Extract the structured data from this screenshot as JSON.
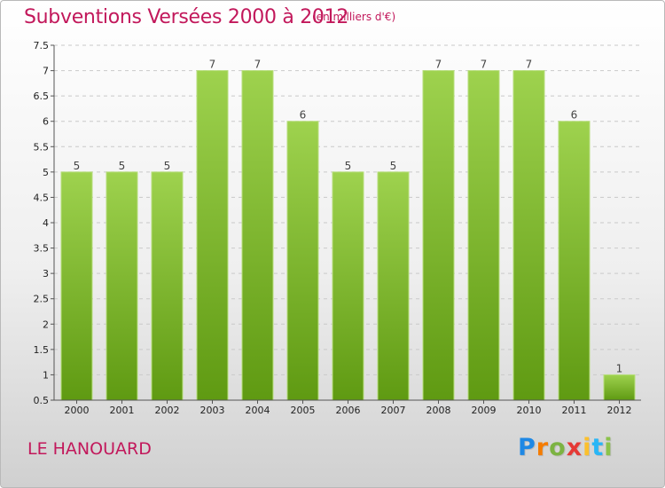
{
  "title": "Subventions Versées 2000 à 2012",
  "unit_note": "(en milliers d'€)",
  "commune": "LE HANOUARD",
  "logo": {
    "letters": [
      {
        "ch": "P",
        "color": "#1e88e5"
      },
      {
        "ch": "r",
        "color": "#f57c00"
      },
      {
        "ch": "o",
        "color": "#7cb342"
      },
      {
        "ch": "x",
        "color": "#e53935"
      },
      {
        "ch": "i",
        "color": "#fbc02d"
      },
      {
        "ch": "t",
        "color": "#29b6f6"
      },
      {
        "ch": "i",
        "color": "#8bc34a"
      }
    ]
  },
  "colors": {
    "bar_top": "#9ed24e",
    "bar_bottom": "#5f9a12",
    "title": "#c2185b"
  },
  "chart_data": {
    "type": "bar",
    "title": "Subventions Versées 2000 à 2012",
    "subtitle": "(en milliers d'€)",
    "categories": [
      "2000",
      "2001",
      "2002",
      "2003",
      "2004",
      "2005",
      "2006",
      "2007",
      "2008",
      "2009",
      "2010",
      "2011",
      "2012"
    ],
    "values": [
      5,
      5,
      5,
      7,
      7,
      6,
      5,
      5,
      7,
      7,
      7,
      6,
      1
    ],
    "ylim": [
      0.5,
      7.5
    ],
    "yticks": [
      "0.5",
      "1",
      "1.5",
      "2",
      "2.5",
      "3",
      "3.5",
      "4",
      "4.5",
      "5",
      "5.5",
      "6",
      "6.5",
      "7",
      "7.5"
    ],
    "xlabel": "",
    "ylabel": "",
    "grid": true,
    "show_value_labels": true
  }
}
